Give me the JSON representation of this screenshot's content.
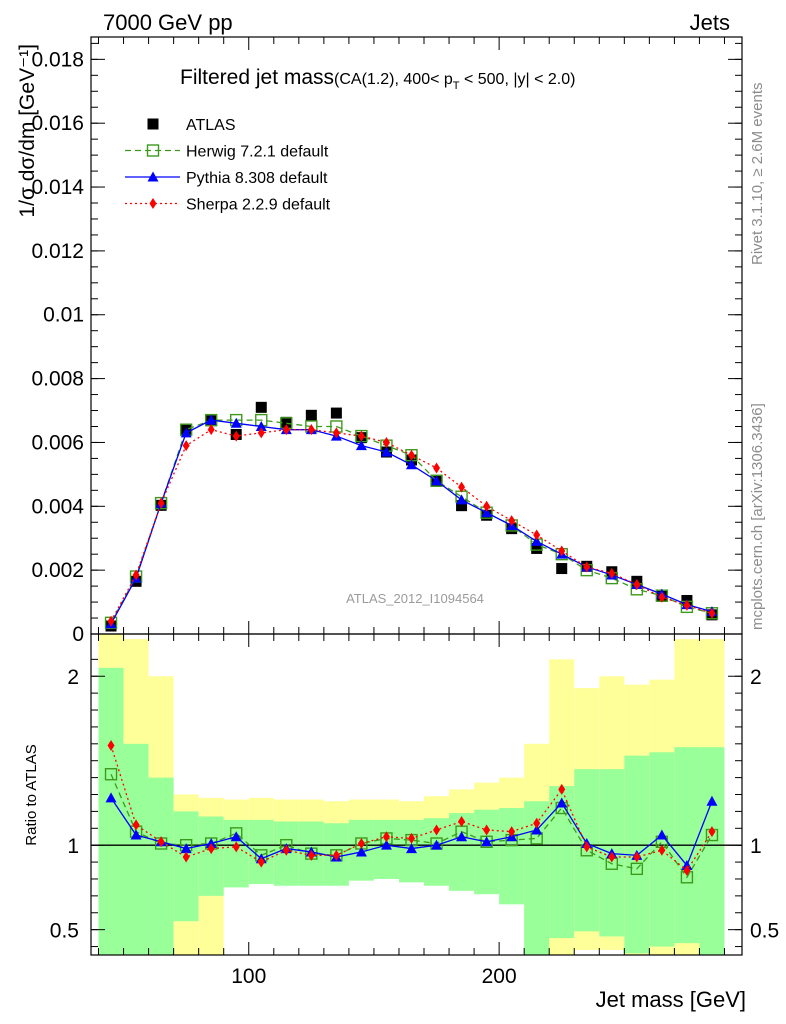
{
  "header": {
    "left": "7000 GeV pp",
    "right": "Jets"
  },
  "side_labels": {
    "rivet": "Rivet 3.1.10, ≥ 2.6M events",
    "mcplots": "mcplots.cern.ch [arXiv:1306.3436]"
  },
  "chart_data": {
    "type": "line",
    "title": "Filtered jet mass",
    "title_sub": "(CA(1.2), 400< p",
    "title_sub_T": "T",
    "title_sub_rest": " < 500, |y| < 2.0)",
    "watermark": "ATLAS_2012_I1094564",
    "xlabel": "Jet mass [GeV]",
    "ylabel": "1/σ dσ/dm [GeV⁻¹]",
    "ratio_ylabel": "Ratio to ATLAS",
    "xlim": [
      37,
      297
    ],
    "ylim": [
      0,
      0.0187
    ],
    "ratio_ylim": [
      0.35,
      2.25
    ],
    "x_ticks": [
      100,
      200
    ],
    "y_ticks": [
      {
        "v": 0,
        "label": "0"
      },
      {
        "v": 0.002,
        "label": "0.002"
      },
      {
        "v": 0.004,
        "label": "0.004"
      },
      {
        "v": 0.006,
        "label": "0.006"
      },
      {
        "v": 0.008,
        "label": "0.008"
      },
      {
        "v": 0.01,
        "label": "0.01"
      },
      {
        "v": 0.012,
        "label": "0.012"
      },
      {
        "v": 0.014,
        "label": "0.014"
      },
      {
        "v": 0.016,
        "label": "0.016"
      },
      {
        "v": 0.018,
        "label": "0.018"
      }
    ],
    "ratio_ticks": [
      {
        "v": 0.5,
        "label": "0.5"
      },
      {
        "v": 1,
        "label": "1"
      },
      {
        "v": 2,
        "label": "2"
      }
    ],
    "legend_position": "top-left",
    "x": [
      45,
      55,
      65,
      75,
      85,
      95,
      105,
      115,
      125,
      135,
      145,
      155,
      165,
      175,
      185,
      195,
      205,
      215,
      225,
      235,
      245,
      255,
      265,
      275,
      285
    ],
    "bins": [
      [
        40,
        50
      ],
      [
        50,
        60
      ],
      [
        60,
        70
      ],
      [
        70,
        80
      ],
      [
        80,
        90
      ],
      [
        90,
        100
      ],
      [
        100,
        110
      ],
      [
        110,
        120
      ],
      [
        120,
        130
      ],
      [
        130,
        140
      ],
      [
        140,
        150
      ],
      [
        150,
        160
      ],
      [
        160,
        170
      ],
      [
        170,
        180
      ],
      [
        180,
        190
      ],
      [
        190,
        200
      ],
      [
        200,
        210
      ],
      [
        210,
        220
      ],
      [
        220,
        230
      ],
      [
        230,
        240
      ],
      [
        240,
        250
      ],
      [
        250,
        260
      ],
      [
        260,
        270
      ],
      [
        270,
        280
      ],
      [
        280,
        290
      ]
    ],
    "series": [
      {
        "name": "ATLAS",
        "marker": "square",
        "color": "#000000",
        "values": [
          0.00025,
          0.00165,
          0.00403,
          0.0064,
          0.00668,
          0.00625,
          0.0071,
          0.00663,
          0.00685,
          0.00692,
          0.00615,
          0.0057,
          0.00545,
          0.00478,
          0.00402,
          0.00372,
          0.0033,
          0.00268,
          0.00205,
          0.00212,
          0.00195,
          0.00165,
          0.00118,
          0.00105,
          0.0006
        ]
      },
      {
        "name": "Herwig 7.2.1 default",
        "marker": "open-square",
        "color": "#3d9a1c",
        "dash": "6,4",
        "values": [
          0.00035,
          0.0018,
          0.0041,
          0.0064,
          0.0067,
          0.0067,
          0.0067,
          0.0066,
          0.0065,
          0.0065,
          0.0062,
          0.0059,
          0.0056,
          0.0048,
          0.0043,
          0.0038,
          0.0034,
          0.0028,
          0.0025,
          0.002,
          0.00175,
          0.0014,
          0.0012,
          0.00085,
          0.00065
        ]
      },
      {
        "name": "Pythia 8.308 default",
        "marker": "triangle",
        "color": "#0000ff",
        "dash": "",
        "values": [
          0.00032,
          0.00175,
          0.0041,
          0.0063,
          0.0067,
          0.0066,
          0.0065,
          0.0064,
          0.0064,
          0.0062,
          0.0059,
          0.0057,
          0.0053,
          0.0048,
          0.0042,
          0.0038,
          0.0034,
          0.0029,
          0.0025,
          0.0021,
          0.00185,
          0.00155,
          0.00125,
          0.00092,
          0.0007
        ]
      },
      {
        "name": "Sherpa 2.2.9 default",
        "marker": "diamond",
        "color": "#ff0000",
        "dash": "2,3",
        "values": [
          0.0004,
          0.00185,
          0.0041,
          0.0059,
          0.0064,
          0.0062,
          0.0063,
          0.0064,
          0.0064,
          0.0063,
          0.0062,
          0.006,
          0.0056,
          0.0052,
          0.0046,
          0.004,
          0.00355,
          0.0031,
          0.0026,
          0.0021,
          0.0019,
          0.00155,
          0.00115,
          0.0009,
          0.00065
        ]
      }
    ],
    "ratio_series": [
      {
        "name": "Herwig 7.2.1 default",
        "values": [
          1.42,
          1.08,
          1.01,
          1.0,
          1.01,
          1.07,
          0.94,
          1.0,
          0.95,
          0.94,
          1.01,
          1.04,
          1.03,
          1.01,
          1.08,
          1.02,
          1.03,
          1.04,
          1.22,
          0.97,
          0.89,
          0.86,
          1.02,
          0.81,
          1.06
        ]
      },
      {
        "name": "Pythia 8.308 default",
        "values": [
          1.28,
          1.06,
          1.02,
          0.98,
          1.01,
          1.05,
          0.92,
          0.98,
          0.96,
          0.93,
          0.96,
          1.0,
          0.98,
          1.0,
          1.05,
          1.02,
          1.05,
          1.09,
          1.25,
          1.01,
          0.95,
          0.94,
          1.06,
          0.88,
          1.26
        ]
      },
      {
        "name": "Sherpa 2.2.9 default",
        "values": [
          1.59,
          1.12,
          1.02,
          0.93,
          0.98,
          0.99,
          0.9,
          0.97,
          0.94,
          0.94,
          1.01,
          1.05,
          1.04,
          1.09,
          1.14,
          1.09,
          1.08,
          1.13,
          1.33,
          0.99,
          0.93,
          0.93,
          0.97,
          0.85,
          1.08
        ]
      }
    ],
    "bands": {
      "inner_lo": [
        0.35,
        0.35,
        0.35,
        0.55,
        0.7,
        0.75,
        0.77,
        0.76,
        0.76,
        0.76,
        0.79,
        0.8,
        0.78,
        0.76,
        0.73,
        0.71,
        0.65,
        0.35,
        0.45,
        0.49,
        0.46,
        0.36,
        0.4,
        0.42,
        0.35
      ],
      "inner_hi": [
        2.05,
        1.6,
        1.4,
        1.2,
        1.17,
        1.15,
        1.15,
        1.14,
        1.14,
        1.13,
        1.15,
        1.15,
        1.15,
        1.16,
        1.19,
        1.21,
        1.22,
        1.26,
        1.35,
        1.45,
        1.45,
        1.53,
        1.55,
        1.58,
        1.58
      ],
      "outer_lo": [
        0.35,
        0.35,
        0.35,
        0.35,
        0.35,
        0.9,
        0.88,
        0.86,
        0.84,
        0.82,
        0.87,
        0.89,
        0.87,
        0.86,
        0.82,
        0.81,
        0.75,
        0.35,
        0.35,
        0.38,
        0.38,
        0.35,
        0.35,
        0.35,
        0.35
      ],
      "outer_hi": [
        2.25,
        2.22,
        2.0,
        1.3,
        1.28,
        1.27,
        1.28,
        1.27,
        1.27,
        1.26,
        1.27,
        1.27,
        1.26,
        1.29,
        1.33,
        1.37,
        1.4,
        1.6,
        2.1,
        1.93,
        2.0,
        1.95,
        1.98,
        2.22,
        2.22
      ]
    },
    "band_colors": {
      "inner": "#99ff99",
      "outer": "#ffff99"
    }
  }
}
